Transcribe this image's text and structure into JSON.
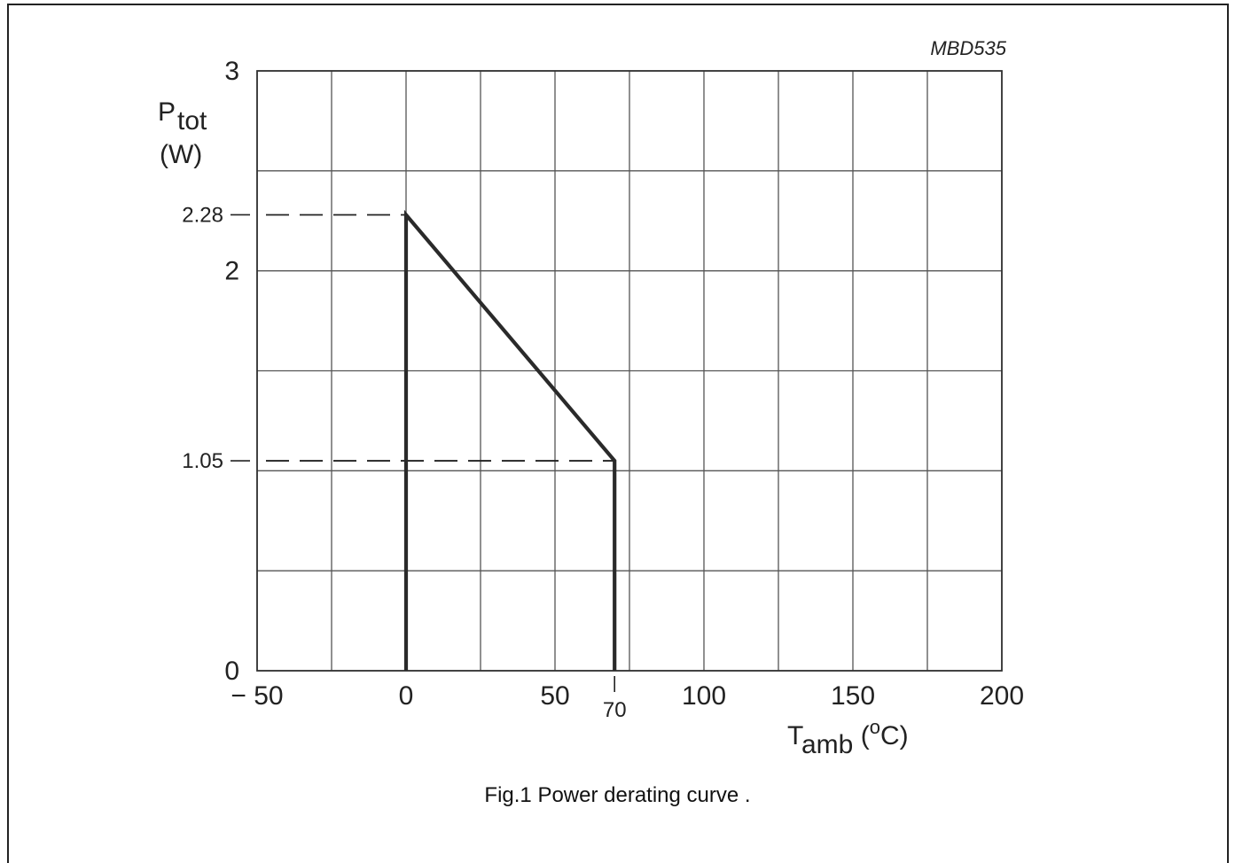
{
  "figure": {
    "code": "MBD535",
    "caption": "Fig.1  Power derating curve ."
  },
  "chart_data": {
    "type": "line",
    "title": "",
    "ylabel": {
      "symbol": "P",
      "subscript": "tot",
      "unit": "(W)"
    },
    "xlabel": {
      "symbol": "T",
      "subscript": "amb",
      "unit_open": " (",
      "unit_sup": "o",
      "unit_close": "C)"
    },
    "xlim": [
      -50,
      200
    ],
    "ylim": [
      0,
      3
    ],
    "x_ticks": [
      -50,
      0,
      50,
      100,
      150,
      200
    ],
    "x_tick_labels": [
      "− 50",
      "0",
      "50",
      "100",
      "150",
      "200"
    ],
    "x_minor_grid_step": 25,
    "y_ticks": [
      0,
      2,
      3
    ],
    "y_tick_labels": [
      "0",
      "2",
      "3"
    ],
    "y_minor_grid_step": 0.5,
    "grid": true,
    "series": [
      {
        "x": [
          0,
          0,
          70,
          70
        ],
        "y": [
          0,
          2.28,
          1.05,
          0
        ]
      }
    ],
    "annotations": [
      {
        "type": "y-dashed-reference",
        "y": 2.28,
        "to_x": 0,
        "label": "2.28"
      },
      {
        "type": "y-dashed-reference",
        "y": 1.05,
        "to_x": 70,
        "label": "1.05"
      },
      {
        "type": "x-marker",
        "x": 70,
        "label": "70"
      }
    ]
  }
}
